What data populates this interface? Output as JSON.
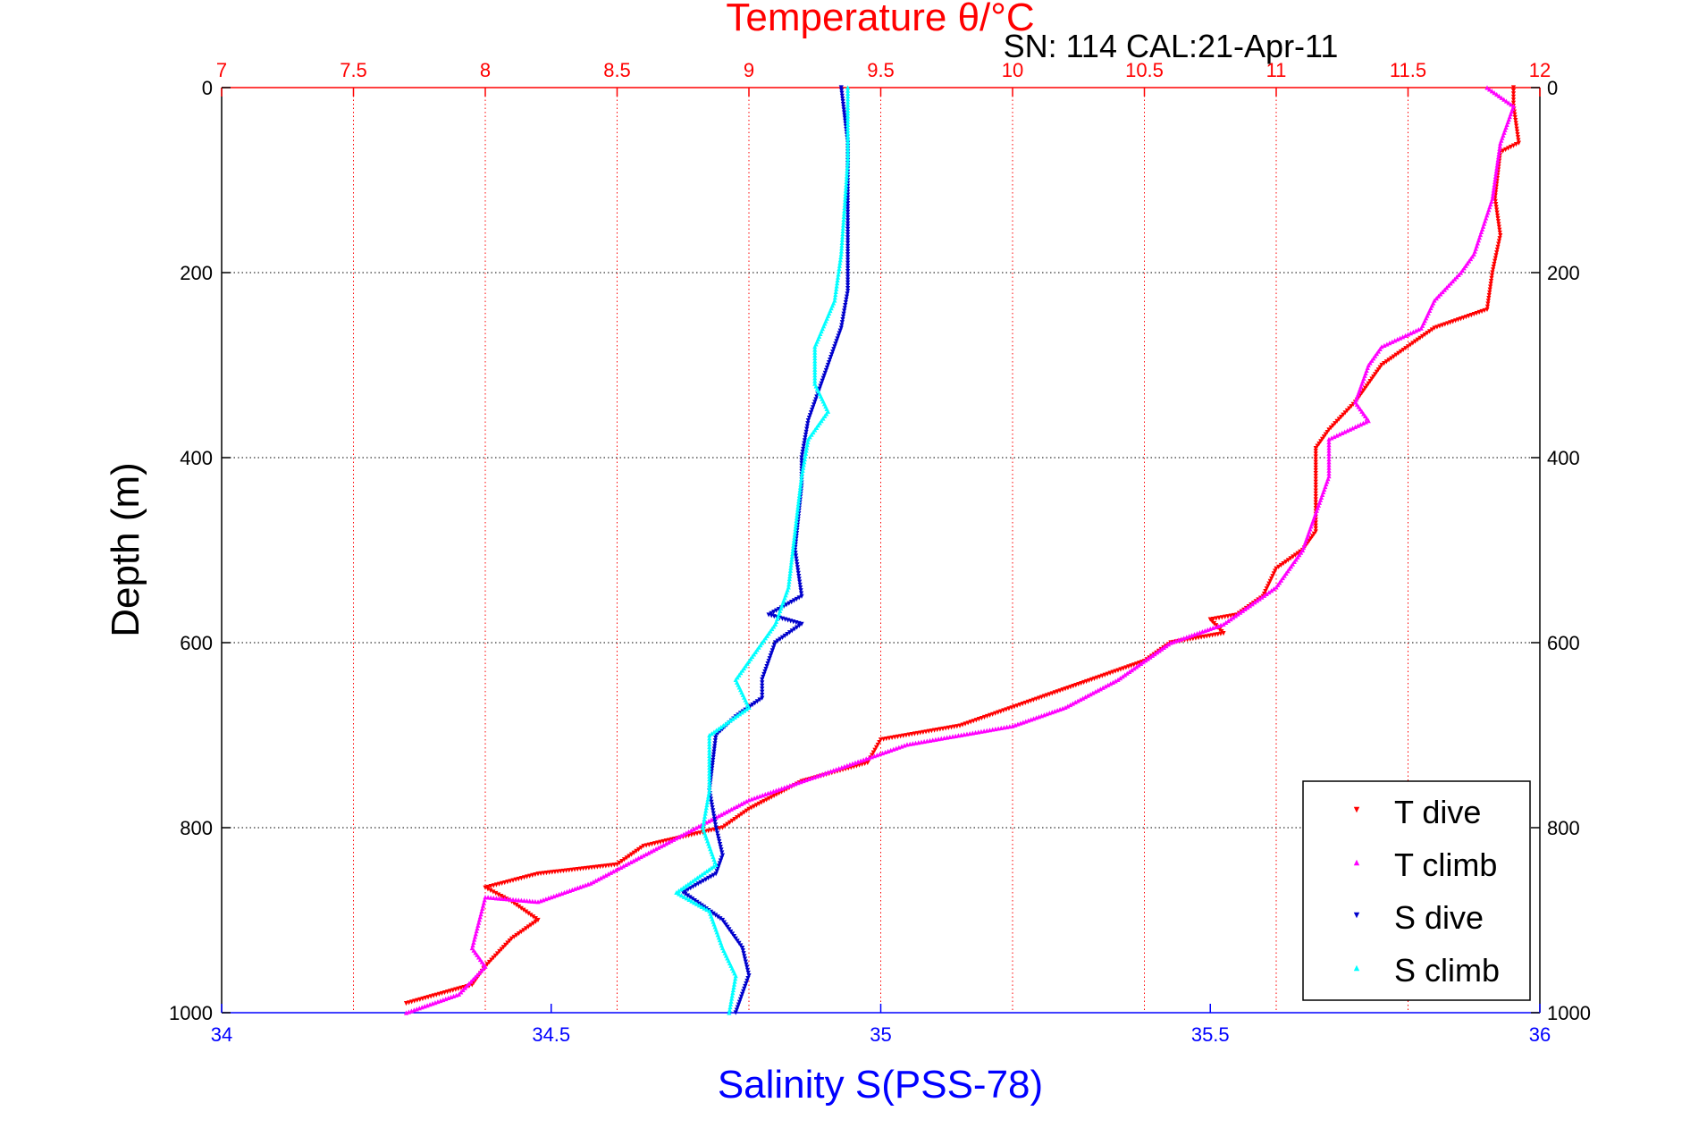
{
  "chart_data": {
    "type": "scatter",
    "title": "Temperature θ/°C",
    "subtitle": "SN: 114  CAL:21-Apr-11",
    "ylabel": "Depth (m)",
    "xlabel": "Salinity S(PSS-78)",
    "ylim": [
      0,
      1000
    ],
    "y_reversed": true,
    "temperature_axis": {
      "range": [
        7,
        12
      ],
      "ticks": [
        "7",
        "7.5",
        "8",
        "8.5",
        "9",
        "9.5",
        "10",
        "10.5",
        "11",
        "11.5",
        "12"
      ],
      "position": "top"
    },
    "salinity_axis": {
      "range": [
        34,
        36
      ],
      "ticks": [
        "34",
        "34.5",
        "35",
        "35.5",
        "36"
      ],
      "position": "bottom"
    },
    "depth_ticks": [
      "0",
      "200",
      "400",
      "600",
      "800",
      "1000"
    ],
    "grid": true,
    "legend": "bottom-right",
    "series": [
      {
        "name": "T dive",
        "axis": "temperature",
        "color": "#ff0000",
        "marker": "triangle-down",
        "points": [
          [
            11.9,
            0
          ],
          [
            11.9,
            20
          ],
          [
            11.92,
            60
          ],
          [
            11.85,
            70
          ],
          [
            11.83,
            120
          ],
          [
            11.85,
            160
          ],
          [
            11.82,
            200
          ],
          [
            11.8,
            240
          ],
          [
            11.6,
            260
          ],
          [
            11.5,
            280
          ],
          [
            11.4,
            300
          ],
          [
            11.3,
            340
          ],
          [
            11.2,
            370
          ],
          [
            11.15,
            390
          ],
          [
            11.15,
            420
          ],
          [
            11.15,
            480
          ],
          [
            11.1,
            500
          ],
          [
            11.0,
            520
          ],
          [
            10.95,
            550
          ],
          [
            10.85,
            570
          ],
          [
            10.75,
            575
          ],
          [
            10.8,
            590
          ],
          [
            10.6,
            600
          ],
          [
            10.5,
            620
          ],
          [
            10.3,
            640
          ],
          [
            10.1,
            660
          ],
          [
            9.8,
            690
          ],
          [
            9.5,
            705
          ],
          [
            9.45,
            730
          ],
          [
            9.2,
            750
          ],
          [
            9.0,
            780
          ],
          [
            8.9,
            800
          ],
          [
            8.6,
            820
          ],
          [
            8.5,
            840
          ],
          [
            8.2,
            850
          ],
          [
            8.0,
            865
          ],
          [
            8.1,
            880
          ],
          [
            8.2,
            900
          ],
          [
            8.1,
            920
          ],
          [
            8.0,
            950
          ],
          [
            7.95,
            970
          ],
          [
            7.7,
            990
          ]
        ]
      },
      {
        "name": "T climb",
        "axis": "temperature",
        "color": "#ff00ff",
        "marker": "triangle-up",
        "points": [
          [
            11.8,
            0
          ],
          [
            11.9,
            20
          ],
          [
            11.85,
            60
          ],
          [
            11.82,
            120
          ],
          [
            11.75,
            180
          ],
          [
            11.7,
            200
          ],
          [
            11.6,
            230
          ],
          [
            11.55,
            260
          ],
          [
            11.4,
            280
          ],
          [
            11.35,
            300
          ],
          [
            11.3,
            340
          ],
          [
            11.35,
            360
          ],
          [
            11.2,
            380
          ],
          [
            11.2,
            420
          ],
          [
            11.15,
            460
          ],
          [
            11.1,
            500
          ],
          [
            11.0,
            540
          ],
          [
            10.9,
            560
          ],
          [
            10.8,
            580
          ],
          [
            10.6,
            600
          ],
          [
            10.4,
            640
          ],
          [
            10.2,
            670
          ],
          [
            10.0,
            690
          ],
          [
            9.6,
            710
          ],
          [
            9.3,
            740
          ],
          [
            9.0,
            770
          ],
          [
            8.8,
            800
          ],
          [
            8.6,
            830
          ],
          [
            8.4,
            860
          ],
          [
            8.2,
            880
          ],
          [
            8.0,
            875
          ],
          [
            7.95,
            930
          ],
          [
            8.0,
            950
          ],
          [
            7.9,
            980
          ],
          [
            7.7,
            1000
          ]
        ]
      },
      {
        "name": "S dive",
        "axis": "salinity",
        "color": "#0000cc",
        "marker": "triangle-down",
        "points": [
          [
            34.94,
            0
          ],
          [
            34.95,
            60
          ],
          [
            34.95,
            150
          ],
          [
            34.95,
            220
          ],
          [
            34.94,
            260
          ],
          [
            34.92,
            300
          ],
          [
            34.89,
            360
          ],
          [
            34.88,
            400
          ],
          [
            34.88,
            430
          ],
          [
            34.87,
            500
          ],
          [
            34.88,
            550
          ],
          [
            34.83,
            570
          ],
          [
            34.88,
            580
          ],
          [
            34.84,
            600
          ],
          [
            34.82,
            640
          ],
          [
            34.82,
            660
          ],
          [
            34.78,
            680
          ],
          [
            34.75,
            700
          ],
          [
            34.74,
            760
          ],
          [
            34.75,
            800
          ],
          [
            34.76,
            830
          ],
          [
            34.75,
            850
          ],
          [
            34.7,
            870
          ],
          [
            34.76,
            900
          ],
          [
            34.79,
            930
          ],
          [
            34.8,
            960
          ],
          [
            34.78,
            1000
          ]
        ]
      },
      {
        "name": "S climb",
        "axis": "salinity",
        "color": "#00ffff",
        "marker": "triangle-up",
        "points": [
          [
            34.95,
            0
          ],
          [
            34.95,
            80
          ],
          [
            34.94,
            180
          ],
          [
            34.93,
            230
          ],
          [
            34.9,
            280
          ],
          [
            34.9,
            320
          ],
          [
            34.92,
            350
          ],
          [
            34.89,
            380
          ],
          [
            34.88,
            420
          ],
          [
            34.87,
            480
          ],
          [
            34.86,
            540
          ],
          [
            34.84,
            580
          ],
          [
            34.81,
            610
          ],
          [
            34.78,
            640
          ],
          [
            34.8,
            670
          ],
          [
            34.74,
            700
          ],
          [
            34.74,
            760
          ],
          [
            34.73,
            800
          ],
          [
            34.75,
            840
          ],
          [
            34.69,
            870
          ],
          [
            34.74,
            890
          ],
          [
            34.76,
            930
          ],
          [
            34.78,
            960
          ],
          [
            34.77,
            1000
          ]
        ]
      }
    ]
  }
}
